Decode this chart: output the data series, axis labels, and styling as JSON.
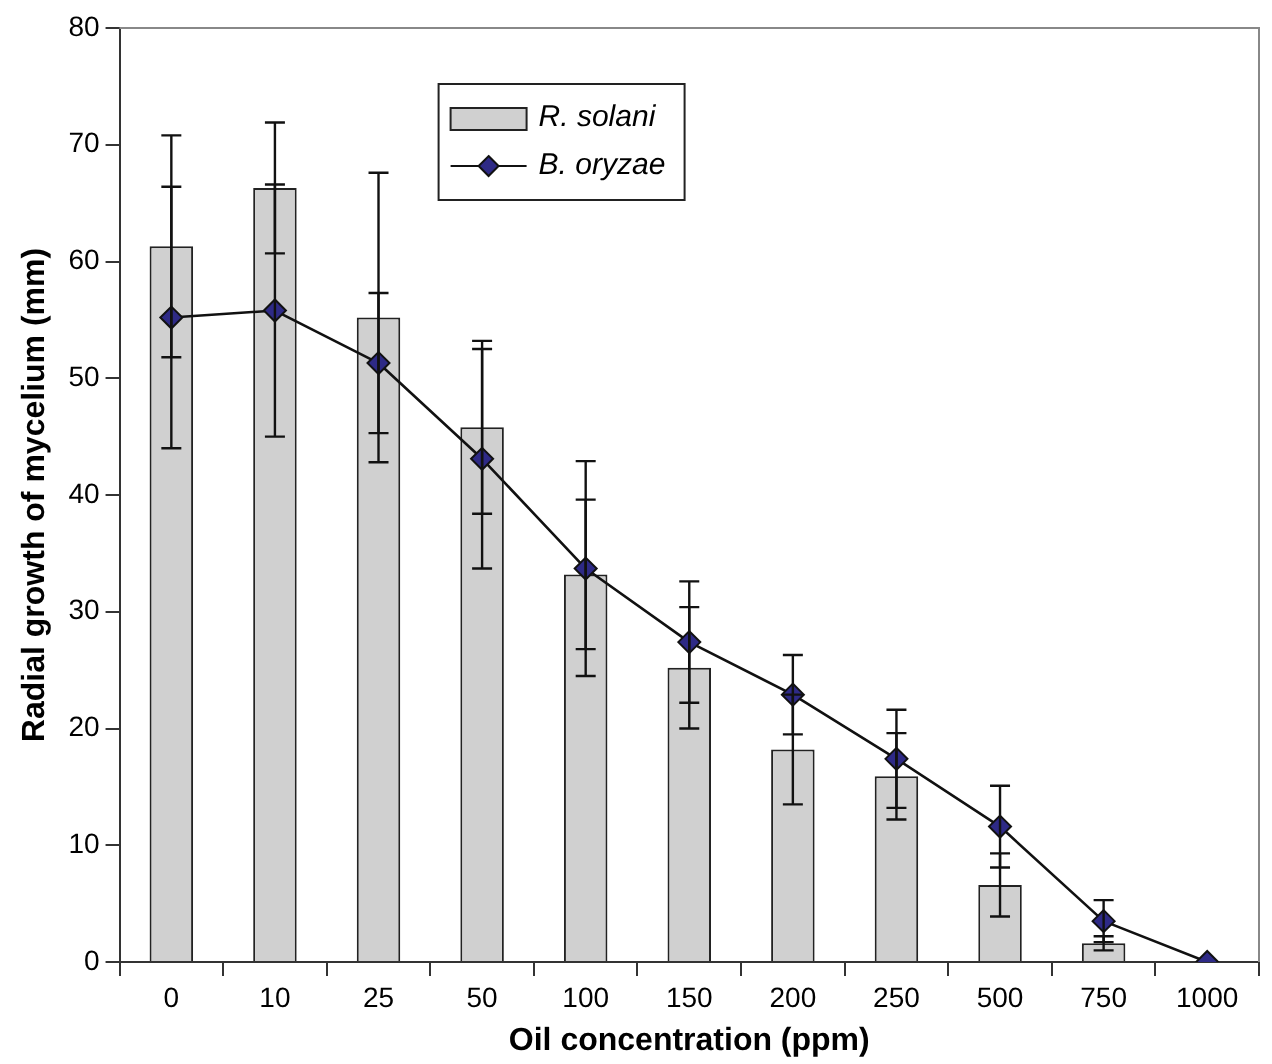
{
  "chart_data": {
    "type": "bar",
    "xlabel": "Oil concentration (ppm)",
    "ylabel": "Radial growth of mycelium (mm)",
    "categories": [
      "0",
      "10",
      "25",
      "50",
      "100",
      "150",
      "200",
      "250",
      "500",
      "750",
      "1000"
    ],
    "series": [
      {
        "name": "R. solani",
        "color": "#d0d0d0",
        "values": [
          61.3,
          66.3,
          55.2,
          45.8,
          33.2,
          25.2,
          18.2,
          15.9,
          6.6,
          1.6,
          0
        ],
        "errors": [
          9.5,
          5.6,
          12.4,
          7.4,
          6.4,
          5.2,
          4.7,
          3.7,
          2.7,
          0.6,
          null
        ]
      },
      {
        "name": "B. oryzae",
        "type": "line",
        "color": "#2e2a86",
        "values": [
          55.2,
          55.8,
          51.3,
          43.1,
          33.7,
          27.4,
          22.9,
          17.4,
          11.6,
          3.5,
          0
        ],
        "errors": [
          11.2,
          10.8,
          6.0,
          9.4,
          9.2,
          5.2,
          3.4,
          4.2,
          3.5,
          1.8,
          null
        ]
      }
    ],
    "ylim": [
      0,
      80
    ],
    "yticks": [
      0,
      10,
      20,
      30,
      40,
      50,
      60,
      70,
      80
    ],
    "grid": false,
    "legend": "top",
    "marker": "diamond",
    "line_style": "solid"
  }
}
